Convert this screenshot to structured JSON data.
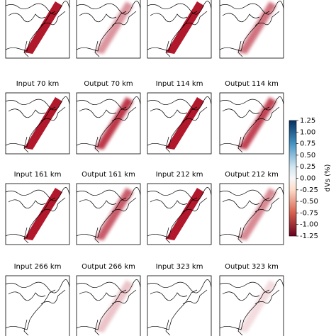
{
  "panel_titles": [
    [
      "Input 70 km",
      "Output 70 km",
      "Input 114 km",
      "Output 114 km"
    ],
    [
      "Input 161 km",
      "Output 161 km",
      "Input 212 km",
      "Output 212 km"
    ],
    [
      "Input 266 km",
      "Output 266 km",
      "Input 323 km",
      "Output 323 km"
    ]
  ],
  "colorbar": {
    "label": "dVs (%)",
    "lim": [
      -1.25,
      1.25
    ],
    "ticks": [
      1.25,
      {
        "value": 1,
        "label": "1.00"
      },
      0.75,
      {
        "value": 0.5,
        "label": "0.50"
      },
      0.25,
      {
        "value": 0,
        "label": "0.00"
      },
      -0.25,
      {
        "value": -0.5,
        "label": "-0.50"
      },
      -0.75,
      {
        "value": -1,
        "label": "-1.00"
      },
      -1.25
    ]
  }
}
